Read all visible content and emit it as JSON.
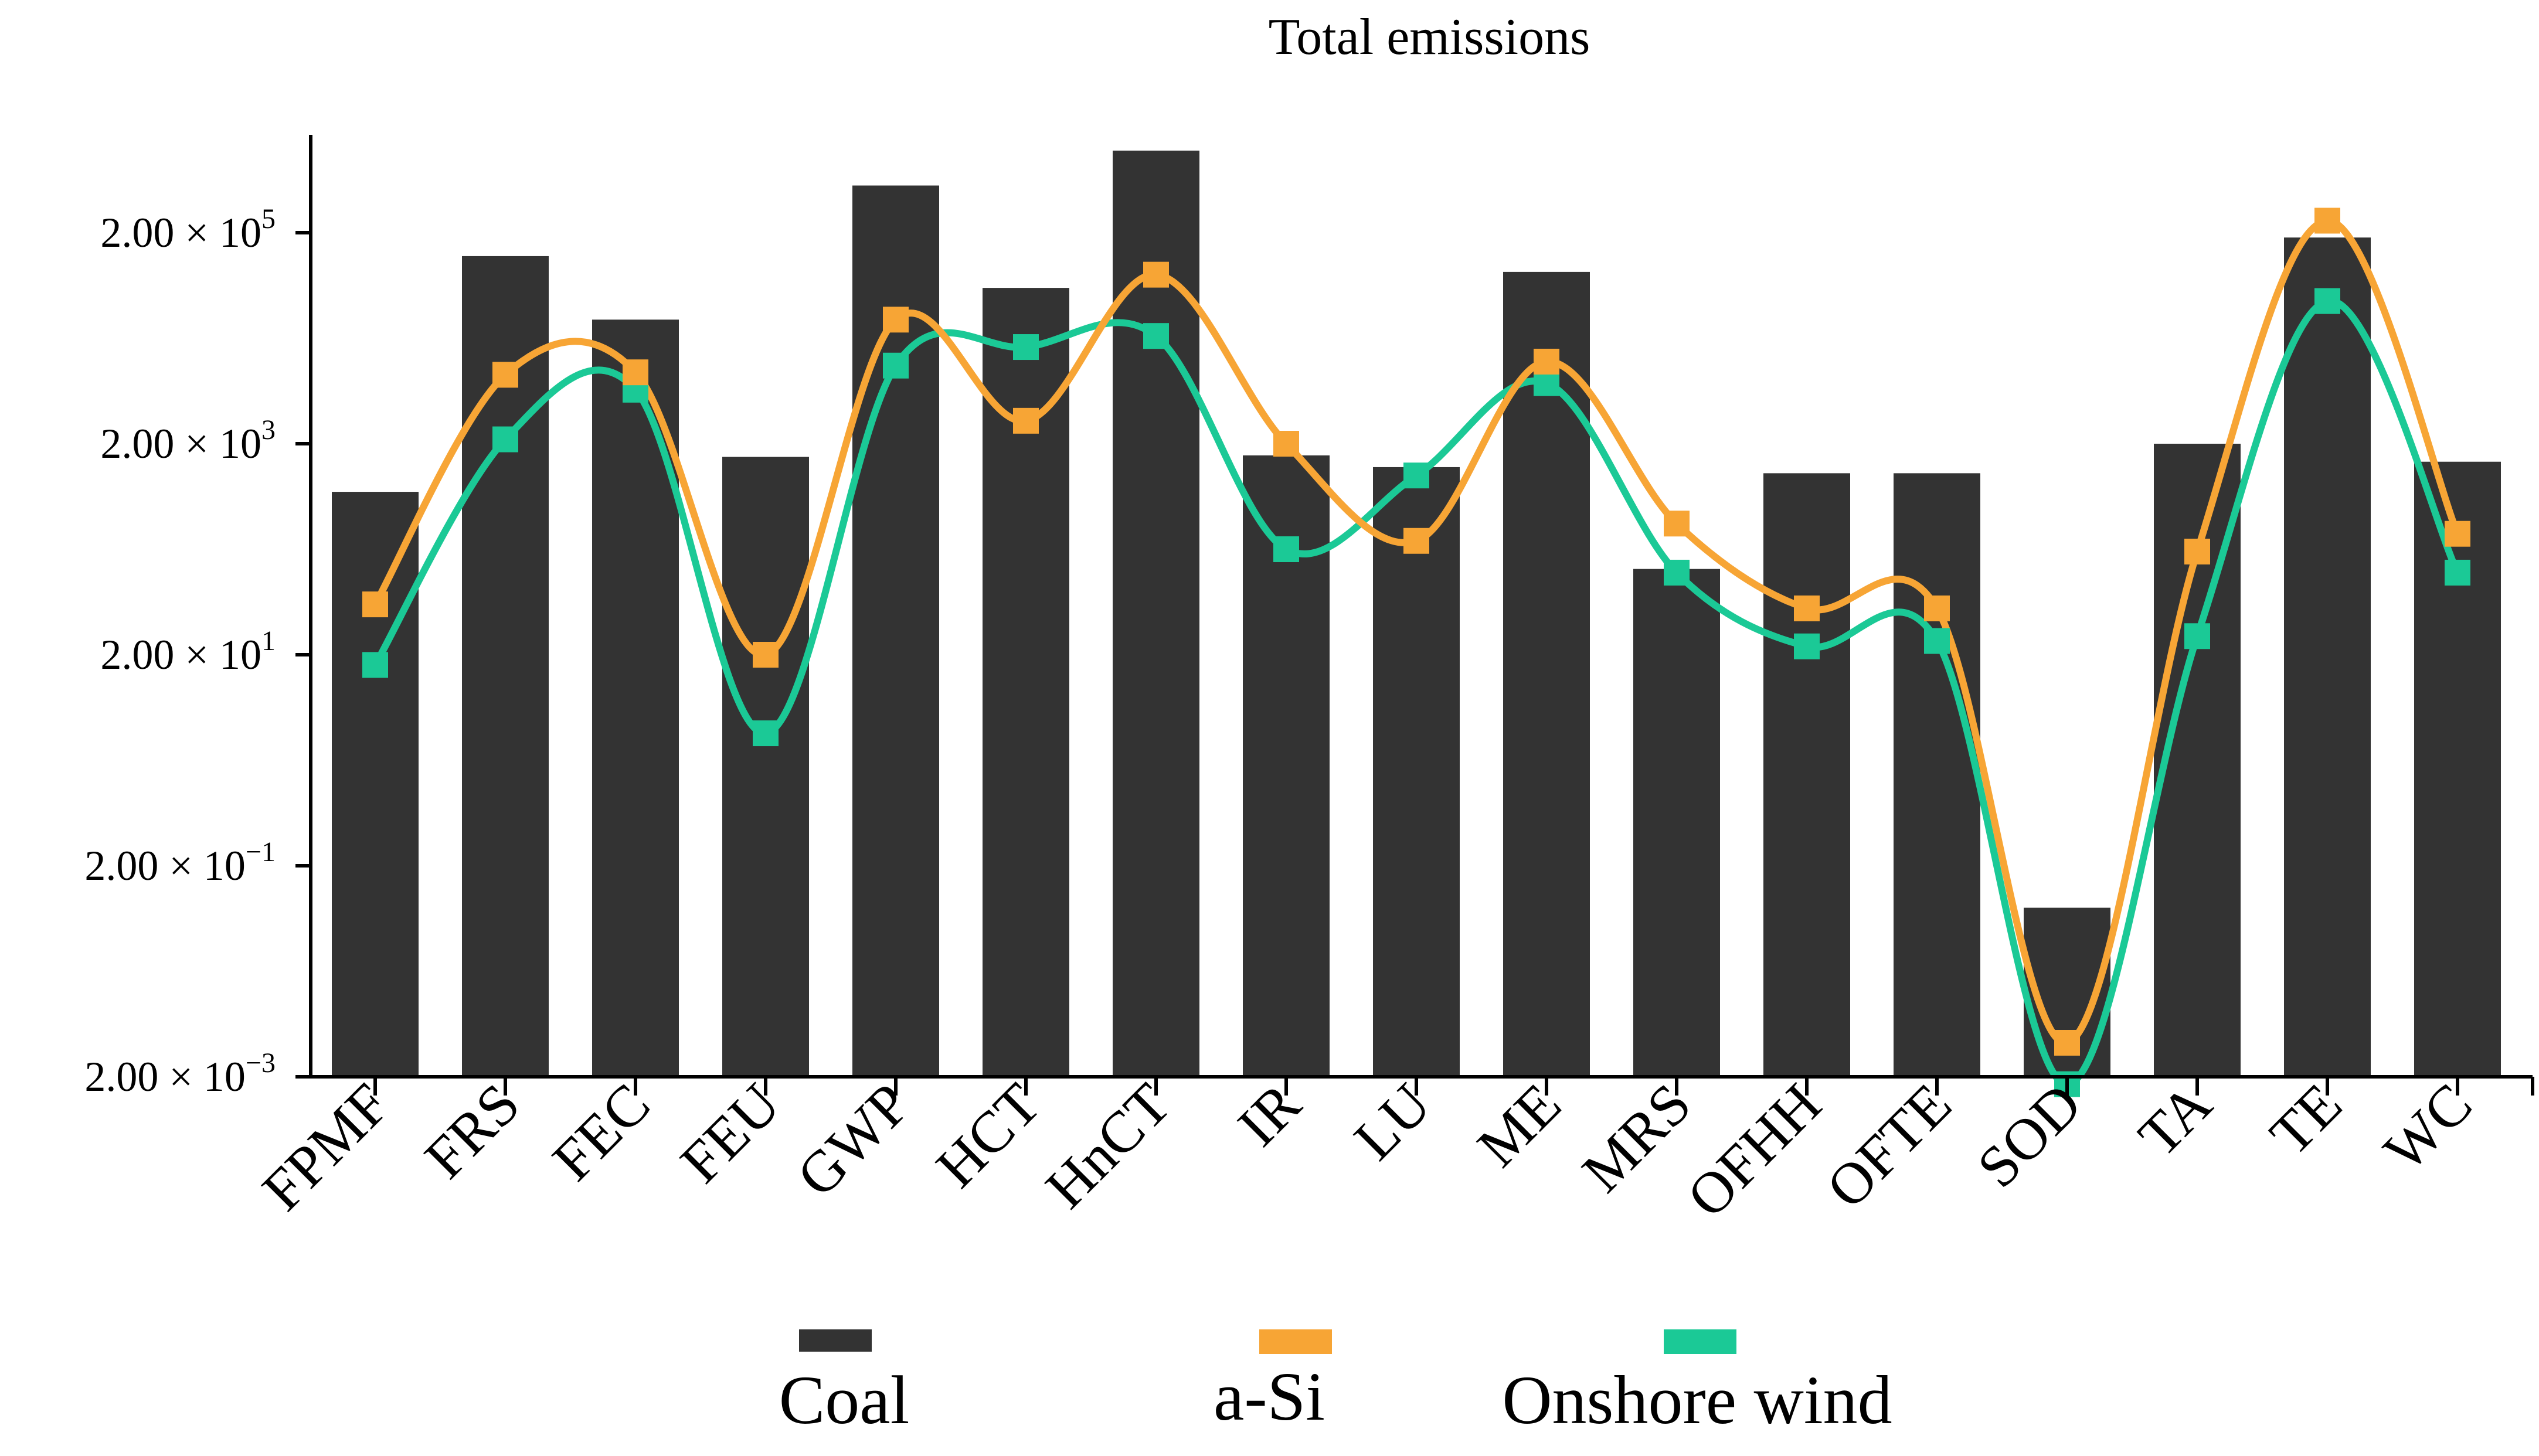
{
  "chart_data": {
    "type": "bar",
    "title": "Total emissions",
    "xlabel": "",
    "ylabel": "",
    "yscale": "log10",
    "ylim": [
      0.002,
      2000000
    ],
    "yticks": [
      {
        "value": 0.002,
        "base": "2.00 × 10",
        "exp": "−3"
      },
      {
        "value": 0.2,
        "base": "2.00 × 10",
        "exp": "−1"
      },
      {
        "value": 20,
        "base": "2.00 × 10",
        "exp": "1"
      },
      {
        "value": 2000,
        "base": "2.00 × 10",
        "exp": "3"
      },
      {
        "value": 200000,
        "base": "2.00 × 10",
        "exp": "5"
      }
    ],
    "categories": [
      "FPMF",
      "FRS",
      "FEC",
      "FEU",
      "GWP",
      "HCT",
      "HnCT",
      "IR",
      "LU",
      "ME",
      "MRS",
      "OFHH",
      "OFTE",
      "SOD",
      "TA",
      "TE",
      "WC"
    ],
    "series": [
      {
        "name": "Coal",
        "kind": "bar",
        "color": "#333333",
        "values": [
          700,
          120000,
          30000,
          1500,
          560000,
          60000,
          1200000,
          1550,
          1200,
          85000,
          130,
          1050,
          1050,
          0.08,
          2000,
          180000,
          1350
        ]
      },
      {
        "name": "a-Si",
        "kind": "line",
        "color": "#f7a535",
        "values": [
          60,
          9000,
          9500,
          20,
          30000,
          3300,
          80000,
          2000,
          240,
          12000,
          350,
          55,
          55,
          0.0042,
          190,
          260000,
          280
        ]
      },
      {
        "name": "Onshore wind",
        "kind": "line",
        "color": "#1bc996",
        "values": [
          16,
          2200,
          6500,
          3.6,
          11000,
          16500,
          21000,
          200,
          1000,
          7500,
          120,
          24,
          27,
          0.0017,
          30,
          45000,
          120
        ]
      }
    ],
    "legend": {
      "position": "bottom-center",
      "entries": [
        "Coal",
        "a-Si",
        "Onshore wind"
      ]
    },
    "grid": false
  }
}
